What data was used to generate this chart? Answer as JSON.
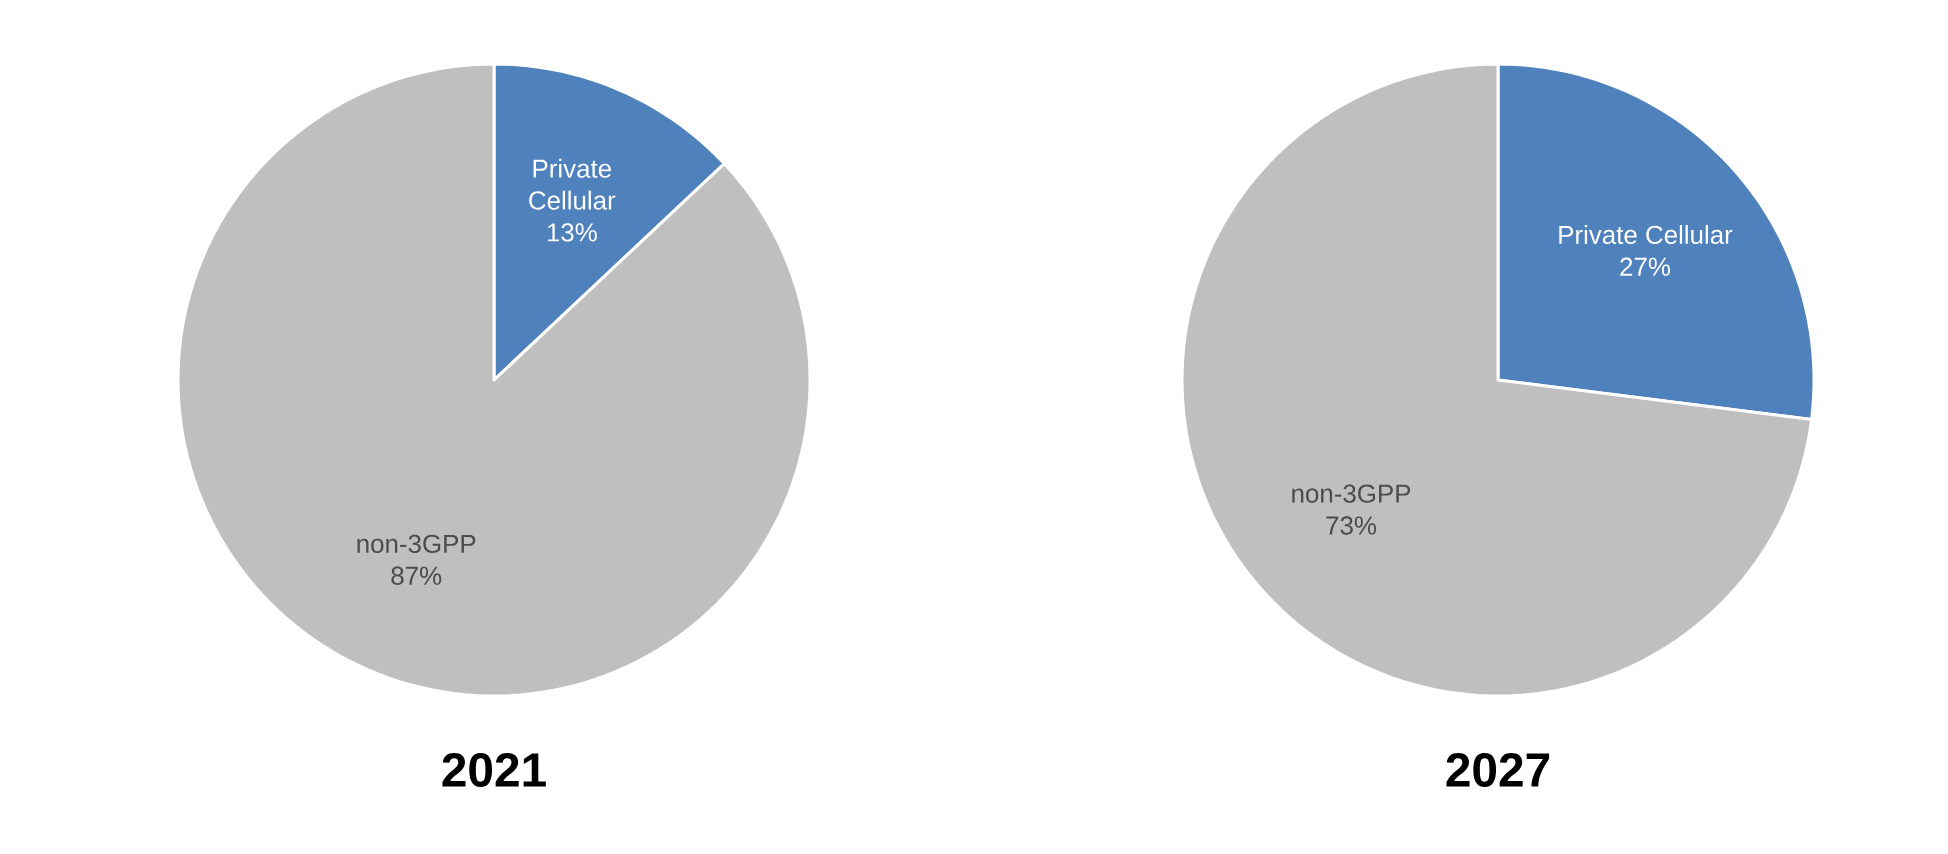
{
  "chart_data": [
    {
      "type": "pie",
      "title": "2021",
      "categories": [
        "Private Cellular",
        "non-3GPP"
      ],
      "values": [
        13,
        87
      ],
      "value_labels": [
        "13%",
        "87%"
      ],
      "colors": [
        "#4f81bd",
        "#bfbfbf"
      ]
    },
    {
      "type": "pie",
      "title": "2027",
      "categories": [
        "Private Cellular",
        "non-3GPP"
      ],
      "values": [
        27,
        73
      ],
      "value_labels": [
        "27%",
        "73%"
      ],
      "colors": [
        "#4f81bd",
        "#bfbfbf"
      ]
    }
  ]
}
